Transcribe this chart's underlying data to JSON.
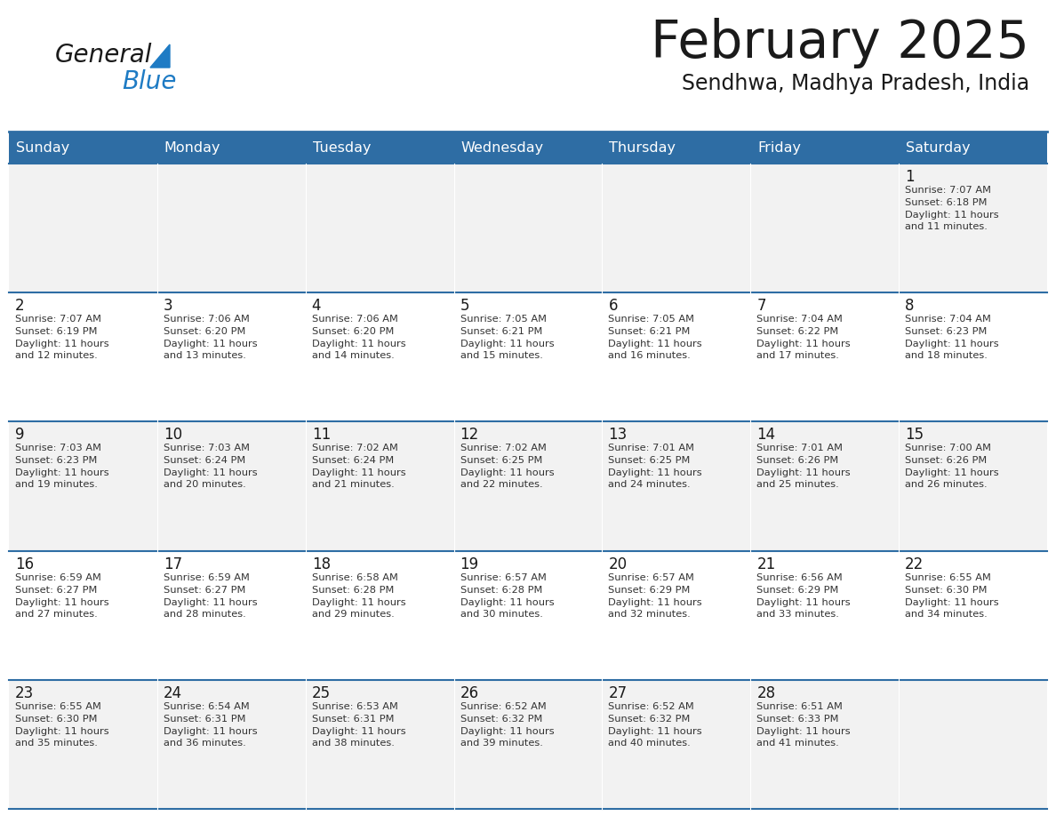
{
  "title": "February 2025",
  "subtitle": "Sendhwa, Madhya Pradesh, India",
  "header_bg": "#2E6DA4",
  "header_text_color": "#FFFFFF",
  "cell_bg_even": "#F2F2F2",
  "cell_bg_odd": "#FFFFFF",
  "border_color": "#2E6DA4",
  "text_color": "#333333",
  "days_of_week": [
    "Sunday",
    "Monday",
    "Tuesday",
    "Wednesday",
    "Thursday",
    "Friday",
    "Saturday"
  ],
  "logo_black_color": "#1a1a1a",
  "logo_blue_color": "#1E7BC4",
  "calendar": [
    [
      {
        "day": null,
        "sunrise": null,
        "sunset": null,
        "daylight": null
      },
      {
        "day": null,
        "sunrise": null,
        "sunset": null,
        "daylight": null
      },
      {
        "day": null,
        "sunrise": null,
        "sunset": null,
        "daylight": null
      },
      {
        "day": null,
        "sunrise": null,
        "sunset": null,
        "daylight": null
      },
      {
        "day": null,
        "sunrise": null,
        "sunset": null,
        "daylight": null
      },
      {
        "day": null,
        "sunrise": null,
        "sunset": null,
        "daylight": null
      },
      {
        "day": 1,
        "sunrise": "7:07 AM",
        "sunset": "6:18 PM",
        "daylight": "11 hours and 11 minutes."
      }
    ],
    [
      {
        "day": 2,
        "sunrise": "7:07 AM",
        "sunset": "6:19 PM",
        "daylight": "11 hours and 12 minutes."
      },
      {
        "day": 3,
        "sunrise": "7:06 AM",
        "sunset": "6:20 PM",
        "daylight": "11 hours and 13 minutes."
      },
      {
        "day": 4,
        "sunrise": "7:06 AM",
        "sunset": "6:20 PM",
        "daylight": "11 hours and 14 minutes."
      },
      {
        "day": 5,
        "sunrise": "7:05 AM",
        "sunset": "6:21 PM",
        "daylight": "11 hours and 15 minutes."
      },
      {
        "day": 6,
        "sunrise": "7:05 AM",
        "sunset": "6:21 PM",
        "daylight": "11 hours and 16 minutes."
      },
      {
        "day": 7,
        "sunrise": "7:04 AM",
        "sunset": "6:22 PM",
        "daylight": "11 hours and 17 minutes."
      },
      {
        "day": 8,
        "sunrise": "7:04 AM",
        "sunset": "6:23 PM",
        "daylight": "11 hours and 18 minutes."
      }
    ],
    [
      {
        "day": 9,
        "sunrise": "7:03 AM",
        "sunset": "6:23 PM",
        "daylight": "11 hours and 19 minutes."
      },
      {
        "day": 10,
        "sunrise": "7:03 AM",
        "sunset": "6:24 PM",
        "daylight": "11 hours and 20 minutes."
      },
      {
        "day": 11,
        "sunrise": "7:02 AM",
        "sunset": "6:24 PM",
        "daylight": "11 hours and 21 minutes."
      },
      {
        "day": 12,
        "sunrise": "7:02 AM",
        "sunset": "6:25 PM",
        "daylight": "11 hours and 22 minutes."
      },
      {
        "day": 13,
        "sunrise": "7:01 AM",
        "sunset": "6:25 PM",
        "daylight": "11 hours and 24 minutes."
      },
      {
        "day": 14,
        "sunrise": "7:01 AM",
        "sunset": "6:26 PM",
        "daylight": "11 hours and 25 minutes."
      },
      {
        "day": 15,
        "sunrise": "7:00 AM",
        "sunset": "6:26 PM",
        "daylight": "11 hours and 26 minutes."
      }
    ],
    [
      {
        "day": 16,
        "sunrise": "6:59 AM",
        "sunset": "6:27 PM",
        "daylight": "11 hours and 27 minutes."
      },
      {
        "day": 17,
        "sunrise": "6:59 AM",
        "sunset": "6:27 PM",
        "daylight": "11 hours and 28 minutes."
      },
      {
        "day": 18,
        "sunrise": "6:58 AM",
        "sunset": "6:28 PM",
        "daylight": "11 hours and 29 minutes."
      },
      {
        "day": 19,
        "sunrise": "6:57 AM",
        "sunset": "6:28 PM",
        "daylight": "11 hours and 30 minutes."
      },
      {
        "day": 20,
        "sunrise": "6:57 AM",
        "sunset": "6:29 PM",
        "daylight": "11 hours and 32 minutes."
      },
      {
        "day": 21,
        "sunrise": "6:56 AM",
        "sunset": "6:29 PM",
        "daylight": "11 hours and 33 minutes."
      },
      {
        "day": 22,
        "sunrise": "6:55 AM",
        "sunset": "6:30 PM",
        "daylight": "11 hours and 34 minutes."
      }
    ],
    [
      {
        "day": 23,
        "sunrise": "6:55 AM",
        "sunset": "6:30 PM",
        "daylight": "11 hours and 35 minutes."
      },
      {
        "day": 24,
        "sunrise": "6:54 AM",
        "sunset": "6:31 PM",
        "daylight": "11 hours and 36 minutes."
      },
      {
        "day": 25,
        "sunrise": "6:53 AM",
        "sunset": "6:31 PM",
        "daylight": "11 hours and 38 minutes."
      },
      {
        "day": 26,
        "sunrise": "6:52 AM",
        "sunset": "6:32 PM",
        "daylight": "11 hours and 39 minutes."
      },
      {
        "day": 27,
        "sunrise": "6:52 AM",
        "sunset": "6:32 PM",
        "daylight": "11 hours and 40 minutes."
      },
      {
        "day": 28,
        "sunrise": "6:51 AM",
        "sunset": "6:33 PM",
        "daylight": "11 hours and 41 minutes."
      },
      {
        "day": null,
        "sunrise": null,
        "sunset": null,
        "daylight": null
      }
    ]
  ]
}
